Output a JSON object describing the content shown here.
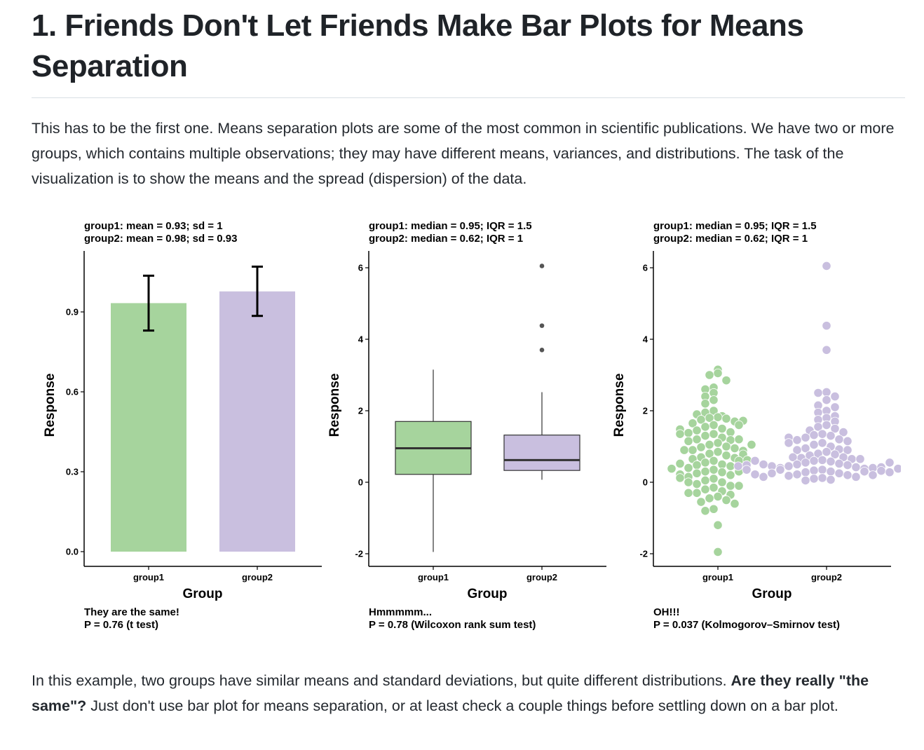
{
  "article": {
    "heading": "1. Friends Don't Let Friends Make Bar Plots for Means Separation",
    "intro": "This has to be the first one. Means separation plots are some of the most common in scientific publications. We have two or more groups, which contains multiple observations; they may have different means, variances, and distributions. The task of the visualization is to show the means and the spread (dispersion) of the data.",
    "outro_before": "In this example, two groups have similar means and standard deviations, but quite different distributions. ",
    "outro_bold": "Are they really \"the same\"?",
    "outro_after": " Just don't use bar plot for means separation, or at least check a couple things before settling down on a bar plot."
  },
  "chart_data": [
    {
      "type": "bar",
      "subtitle": [
        "group1: mean = 0.93; sd = 1",
        "group2: mean = 0.98; sd = 0.93"
      ],
      "xlabel": "Group",
      "ylabel": "Response",
      "categories": [
        "group1",
        "group2"
      ],
      "values": [
        0.933,
        0.977
      ],
      "error_low": [
        0.83,
        0.885
      ],
      "error_high": [
        1.036,
        1.07
      ],
      "ylim": [
        -0.05,
        1.13
      ],
      "yticks": [
        0.0,
        0.3,
        0.6,
        0.9
      ],
      "ytick_labels": [
        "0.0",
        "0.3",
        "0.6",
        "0.9"
      ],
      "colors": [
        "#a6d49d",
        "#c9bfdf"
      ],
      "caption": [
        "They are the same!",
        "P = 0.76 (t test)"
      ]
    },
    {
      "type": "boxplot",
      "subtitle": [
        "group1: median = 0.95; IQR = 1.5",
        "group2: median = 0.62; IQR = 1"
      ],
      "xlabel": "Group",
      "ylabel": "Response",
      "categories": [
        "group1",
        "group2"
      ],
      "boxes": [
        {
          "min": -1.95,
          "q1": 0.22,
          "median": 0.95,
          "q3": 1.7,
          "max": 3.15,
          "outliers": []
        },
        {
          "min": 0.07,
          "q1": 0.33,
          "median": 0.62,
          "q3": 1.32,
          "max": 2.52,
          "outliers": [
            3.7,
            4.38,
            6.05
          ]
        }
      ],
      "ylim": [
        -2.35,
        6.45
      ],
      "yticks": [
        -2,
        0,
        2,
        4,
        6
      ],
      "ytick_labels": [
        "-2",
        "0",
        "2",
        "4",
        "6"
      ],
      "colors": [
        "#a6d49d",
        "#c9bfdf"
      ],
      "caption": [
        "Hmmmmm...",
        "P = 0.78 (Wilcoxon rank sum test)"
      ]
    },
    {
      "type": "scatter",
      "subtitle": [
        "group1: median = 0.95; IQR = 1.5",
        "group2: median = 0.62; IQR = 1"
      ],
      "xlabel": "Group",
      "ylabel": "Response",
      "categories": [
        "group1",
        "group2"
      ],
      "series": [
        {
          "values": [
            3.15,
            3.05,
            3.0,
            2.85,
            2.65,
            2.5,
            2.4,
            2.3,
            2.2,
            2.0,
            1.95,
            1.85,
            1.82,
            1.8,
            1.78,
            1.75,
            1.7,
            1.65,
            1.6,
            1.55,
            1.5,
            1.45,
            1.4,
            1.38,
            1.35,
            1.3,
            1.25,
            1.2,
            1.18,
            1.15,
            1.1,
            1.05,
            1.0,
            0.98,
            0.95,
            0.9,
            0.88,
            0.85,
            0.8,
            0.75,
            0.7,
            0.68,
            0.65,
            0.6,
            0.55,
            0.5,
            0.48,
            0.45,
            0.4,
            0.35,
            0.3,
            0.28,
            0.25,
            0.2,
            0.15,
            0.1,
            0.05,
            0.0,
            -0.05,
            -0.1,
            -0.15,
            -0.2,
            -0.25,
            -0.3,
            -0.35,
            -0.4,
            -0.45,
            -0.5,
            -0.55,
            -0.6,
            -0.75,
            -0.8,
            -1.2,
            -1.95,
            1.9,
            1.6,
            1.2,
            0.9,
            0.6,
            0.3,
            0.0,
            -0.3,
            2.6,
            1.35,
            1.05,
            0.78,
            0.52,
            0.22,
            -0.1,
            1.72,
            1.48,
            0.62,
            0.38,
            0.12
          ]
        },
        {
          "values": [
            6.05,
            4.38,
            3.7,
            2.52,
            2.5,
            2.4,
            2.3,
            2.15,
            2.1,
            2.0,
            1.95,
            1.85,
            1.8,
            1.75,
            1.7,
            1.6,
            1.55,
            1.5,
            1.45,
            1.4,
            1.35,
            1.32,
            1.3,
            1.25,
            1.2,
            1.18,
            1.15,
            1.1,
            1.05,
            1.0,
            0.95,
            0.92,
            0.9,
            0.85,
            0.8,
            0.78,
            0.75,
            0.7,
            0.68,
            0.65,
            0.62,
            0.6,
            0.58,
            0.55,
            0.52,
            0.5,
            0.48,
            0.45,
            0.42,
            0.4,
            0.38,
            0.35,
            0.33,
            0.3,
            0.28,
            0.25,
            0.22,
            0.2,
            0.18,
            0.15,
            0.12,
            0.1,
            0.07,
            0.05,
            0.45,
            0.4,
            0.35,
            0.3,
            0.25,
            0.2,
            0.15,
            0.5,
            0.42,
            0.32,
            0.22,
            0.6,
            0.55,
            0.48,
            0.38,
            0.28,
            0.9,
            0.7,
            1.1,
            1.25,
            0.65,
            0.35,
            0.45
          ]
        }
      ],
      "ylim": [
        -2.35,
        6.45
      ],
      "yticks": [
        -2,
        0,
        2,
        4,
        6
      ],
      "ytick_labels": [
        "-2",
        "0",
        "2",
        "4",
        "6"
      ],
      "colors": [
        "#a6d49d",
        "#c9bfdf"
      ],
      "caption": [
        "OH!!!",
        "P = 0.037 (Kolmogorov–Smirnov test)"
      ]
    }
  ]
}
